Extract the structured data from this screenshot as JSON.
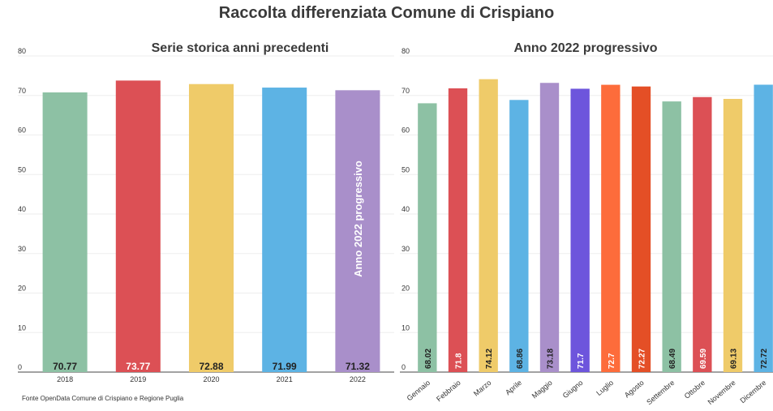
{
  "title": "Raccolta differenziata Comune di Crispiano",
  "source": "Fonte OpenData Comune di Crispiano e Regione Puglia",
  "chart_data": [
    {
      "type": "bar",
      "title": "Serie storica anni precedenti",
      "ylim": [
        0,
        80
      ],
      "yticks": [
        0,
        10,
        20,
        30,
        40,
        50,
        60,
        70,
        80
      ],
      "grid": true,
      "categories": [
        "2018",
        "2019",
        "2020",
        "2021",
        "2022"
      ],
      "values": [
        70.77,
        73.77,
        72.88,
        71.99,
        71.32
      ],
      "labels": [
        "70.77",
        "73.77",
        "72.88",
        "71.99",
        "71.32"
      ],
      "colors": [
        "#8dc1a4",
        "#dc5055",
        "#efcb69",
        "#5db3e4",
        "#a98fca"
      ],
      "label_colors": [
        "#222222",
        "#ffffff",
        "#222222",
        "#222222",
        "#222222"
      ],
      "annotation": "Anno 2022 progressivo"
    },
    {
      "type": "bar",
      "title": "Anno 2022 progressivo",
      "ylim": [
        0,
        80
      ],
      "yticks": [
        0,
        10,
        20,
        30,
        40,
        50,
        60,
        70,
        80
      ],
      "grid": true,
      "categories": [
        "Gennaio",
        "Febbraio",
        "Marzo",
        "Aprile",
        "Maggio",
        "Giugno",
        "Luglio",
        "Agosto",
        "Settembre",
        "Ottobre",
        "Novembre",
        "Dicembre"
      ],
      "values": [
        68.02,
        71.8,
        74.12,
        68.86,
        73.18,
        71.7,
        72.7,
        72.27,
        68.49,
        69.59,
        69.13,
        72.72
      ],
      "labels": [
        "68.02",
        "71.8",
        "74.12",
        "68.86",
        "73.18",
        "71.7",
        "72.7",
        "72.27",
        "68.49",
        "69.59",
        "69.13",
        "72.72"
      ],
      "colors": [
        "#8dc1a4",
        "#dc5055",
        "#efcb69",
        "#5db3e4",
        "#a98fca",
        "#6d55dc",
        "#fd6c3b",
        "#e44f26",
        "#8dc1a4",
        "#dc5055",
        "#efcb69",
        "#5db3e4"
      ],
      "label_colors": [
        "#222222",
        "#ffffff",
        "#222222",
        "#222222",
        "#222222",
        "#ffffff",
        "#ffffff",
        "#ffffff",
        "#222222",
        "#ffffff",
        "#222222",
        "#222222"
      ]
    }
  ]
}
